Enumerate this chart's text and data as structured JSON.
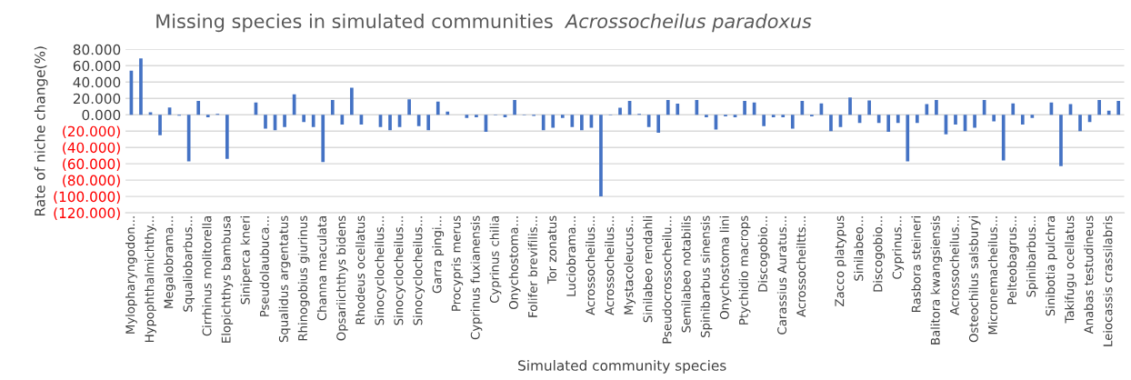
{
  "chart_data": {
    "type": "bar",
    "title": "Missing species in simulated communities",
    "subtitle": "Acrossocheilus paradoxus",
    "xlabel": "Simulated community species",
    "ylabel": "Rate of niche change(%)",
    "categories": [
      "Mylopharyngodon...",
      null,
      "Hypophthalmichthy...",
      null,
      "Megalobrama...",
      null,
      "Squaliobarbus...",
      null,
      "Cirrhinus molitorella",
      null,
      "Elopichthys bambusa",
      null,
      "Siniperca kneri",
      null,
      "Pseudolaubuca...",
      null,
      "Squalidus argentatus",
      null,
      "Rhinogobius giurinus",
      null,
      "Channa maculata",
      null,
      "Opsariichthys bidens",
      null,
      "Rhodeus ocellatus",
      null,
      "Sinocyclocheilus...",
      null,
      "Sinocyclocheilus...",
      null,
      "Sinocyclocheilus...",
      null,
      "Garra pingi...",
      null,
      "Procypris merus",
      null,
      "Cyprinus fuxianensis",
      null,
      "Cyprinus chilia",
      null,
      "Onychostoma...",
      null,
      "Folifer brevifilis...",
      null,
      "Tor zonatus",
      null,
      "Luciobrama...",
      null,
      "Acrossocheilus...",
      null,
      "Acrossocheilus...",
      null,
      "Mystacoleucus...",
      null,
      "Sinilabeo rendahli",
      null,
      "Pseudocrossocheilu...",
      null,
      "Semilabeo notabilis",
      null,
      "Spinibarbus sinensis",
      null,
      "Onychostoma lini",
      null,
      "Ptychidio macrops",
      null,
      "Discogobio...",
      null,
      "Carassius Auratus...",
      null,
      "Acrossocheiltts...",
      null,
      null,
      null,
      "Zacco platypus",
      null,
      "Sinilabeo...",
      null,
      "Discogobio...",
      null,
      "Cyprinus...",
      null,
      "Rasbora steineri",
      null,
      "Balitora kwangsiensis",
      null,
      "Acrossocheilus...",
      null,
      "Osteochilus salsburyi",
      null,
      "Micronemacheilus...",
      null,
      "Pelteobagrus...",
      null,
      "Spinibarbus...",
      null,
      "Sinibotia pulchra",
      null,
      "Takifugu ocellatus",
      null,
      "Anabas testudineus",
      null,
      "Leiocassis crassilabris",
      null
    ],
    "values": [
      54,
      69,
      3,
      -25,
      9,
      -1,
      -57,
      17,
      -3,
      1,
      -54,
      0,
      0,
      15,
      -17,
      -19,
      -15,
      25,
      -9,
      -15,
      -58,
      18,
      -12,
      33,
      -12,
      0,
      -15,
      -19,
      -15,
      19,
      -14,
      -19,
      16,
      4,
      0,
      -4,
      -3,
      -21,
      -0.5,
      -3,
      18,
      -0.5,
      -1.5,
      -19,
      -16,
      -4,
      -15,
      -19,
      -16,
      -100,
      -0.7,
      8.5,
      17,
      1,
      -15,
      -22,
      18,
      13.5,
      0,
      18,
      -3,
      -18,
      -2,
      -3,
      17,
      15,
      -14,
      -3,
      -3,
      -17,
      17,
      -2,
      14,
      -20,
      -15,
      21,
      -10,
      17.5,
      -10,
      -21,
      -10,
      -57,
      -10,
      13,
      18,
      -24,
      -12,
      -20,
      -16,
      18,
      -8,
      -56,
      14,
      -12,
      -4,
      0,
      15,
      -63,
      13,
      -20,
      -9,
      18,
      5,
      17
    ],
    "color": "#4472c4",
    "ylim": [
      -120,
      80
    ],
    "yticks": [
      {
        "value": 80,
        "label": "80.000"
      },
      {
        "value": 60,
        "label": "60.000"
      },
      {
        "value": 40,
        "label": "40.000"
      },
      {
        "value": 20,
        "label": "20.000"
      },
      {
        "value": 0,
        "label": "0.000"
      },
      {
        "value": -20,
        "label": "(20.000)"
      },
      {
        "value": -40,
        "label": "(40.000)"
      },
      {
        "value": -60,
        "label": "(60.000)"
      },
      {
        "value": -80,
        "label": "(80.000)"
      },
      {
        "value": -100,
        "label": "(100.000)"
      },
      {
        "value": -120,
        "label": "(120.000)"
      }
    ],
    "grid": "y"
  }
}
